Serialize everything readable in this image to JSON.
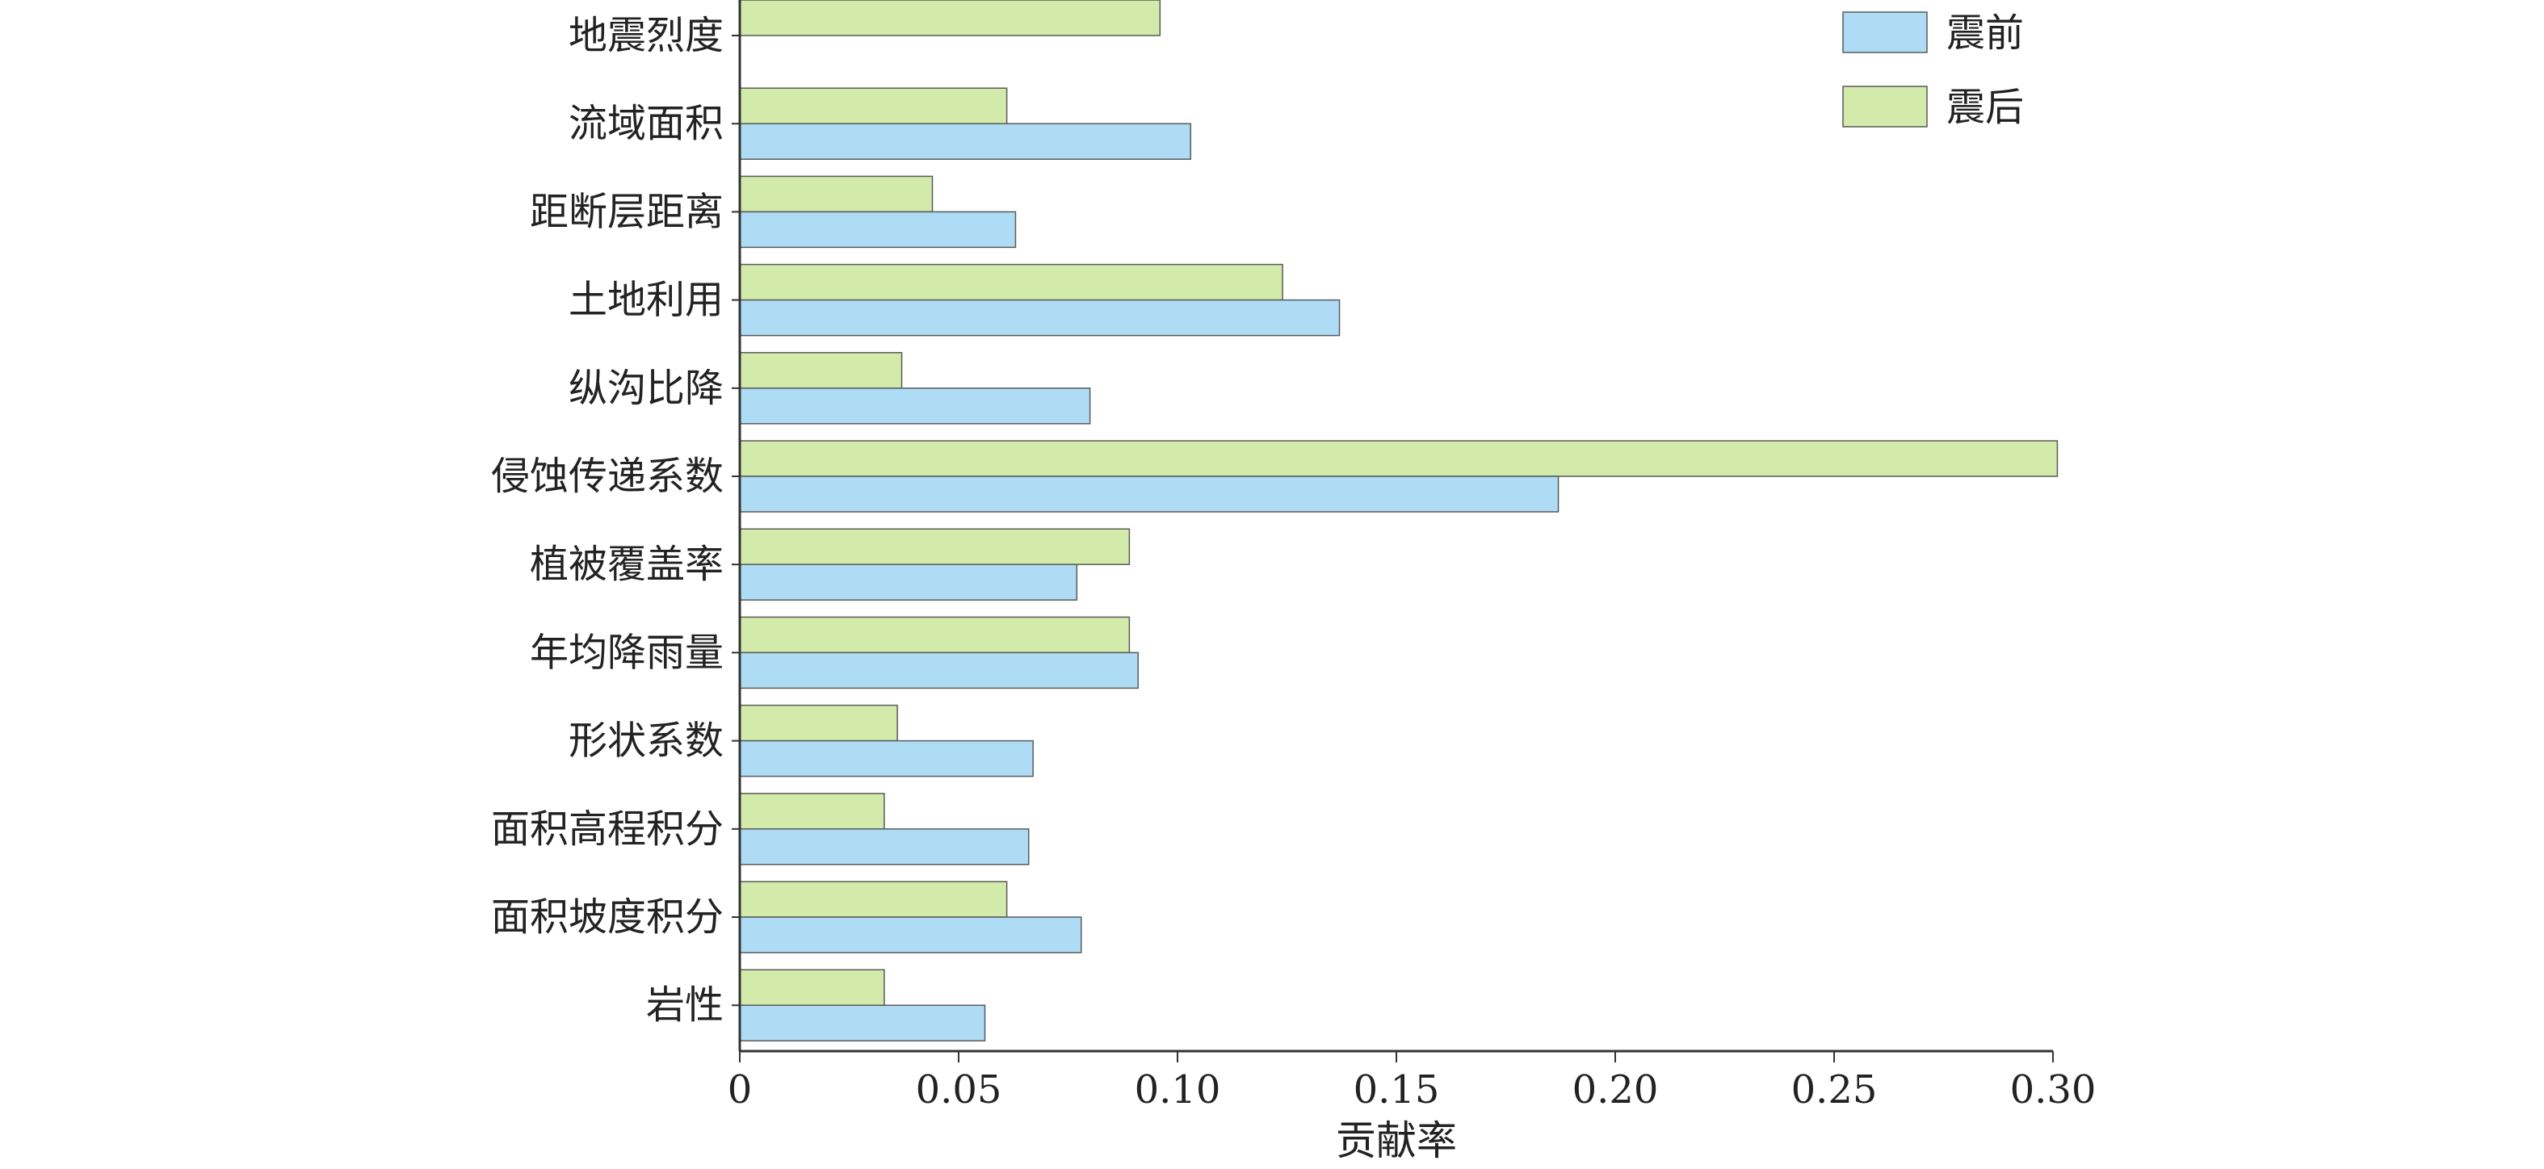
{
  "chart_data": {
    "type": "bar",
    "orientation": "horizontal",
    "categories": [
      "地震烈度",
      "流域面积",
      "距断层距离",
      "土地利用",
      "纵沟比降",
      "侵蚀传递系数",
      "植被覆盖率",
      "年均降雨量",
      "形状系数",
      "面积高程积分",
      "面积坡度积分",
      "岩性"
    ],
    "series": [
      {
        "name": "震前",
        "color": "#aedcf5",
        "values": [
          null,
          0.103,
          0.063,
          0.137,
          0.08,
          0.187,
          0.077,
          0.091,
          0.067,
          0.066,
          0.078,
          0.056
        ]
      },
      {
        "name": "震后",
        "color": "#d2ebaa",
        "values": [
          0.096,
          0.061,
          0.044,
          0.124,
          0.037,
          0.301,
          0.089,
          0.089,
          0.036,
          0.033,
          0.061,
          0.033
        ]
      }
    ],
    "title": "",
    "xlabel": "贡献率",
    "ylabel": "",
    "xlim": [
      0,
      0.3
    ],
    "xticks": [
      "0",
      "0.05",
      "0.10",
      "0.15",
      "0.20",
      "0.25",
      "0.30"
    ],
    "grid": false,
    "legend": "top-right"
  }
}
